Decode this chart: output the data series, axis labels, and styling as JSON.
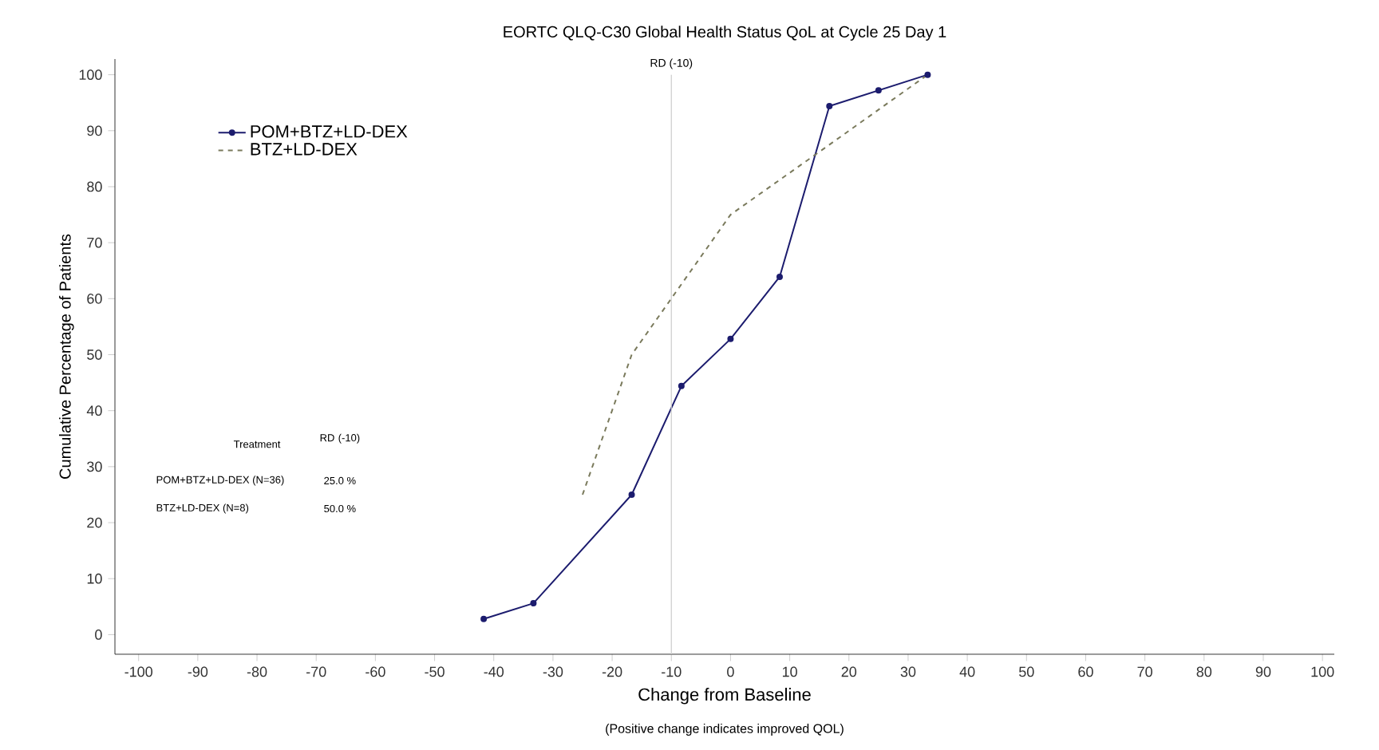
{
  "chart_data": {
    "type": "line",
    "title": "EORTC QLQ-C30 Global Health Status QoL at Cycle 25 Day 1",
    "xlabel": "Change from Baseline",
    "ylabel": "Cumulative Percentage of Patients",
    "xlim": [
      -104,
      102
    ],
    "ylim": [
      -3.5,
      102.8
    ],
    "xticks": [
      -100,
      -90,
      -80,
      -70,
      -60,
      -50,
      -40,
      -30,
      -20,
      -10,
      0,
      10,
      20,
      30,
      40,
      50,
      60,
      70,
      80,
      90,
      100
    ],
    "yticks": [
      0,
      10,
      20,
      30,
      40,
      50,
      60,
      70,
      80,
      90,
      100
    ],
    "grid": false,
    "legend": "top left",
    "series": [
      {
        "name": "POM+BTZ+LD-DEX",
        "color": "#1c1c6e",
        "marker": "circle",
        "line_style": "solid",
        "x": [
          -41.7,
          -33.3,
          -16.7,
          -8.3,
          0,
          8.3,
          16.7,
          25,
          33.3
        ],
        "values": [
          2.8,
          5.6,
          25.0,
          44.4,
          52.8,
          63.9,
          94.4,
          97.2,
          100
        ]
      },
      {
        "name": "BTZ+LD-DEX",
        "color": "#7a7a5c",
        "marker": "none",
        "line_style": "dashed",
        "x": [
          -25,
          -16.7,
          0,
          16.7,
          33.3
        ],
        "values": [
          25,
          50,
          75,
          87.5,
          100
        ]
      }
    ],
    "ref_lines": [
      {
        "axis": "x",
        "value": -10,
        "label": "RD (-10)",
        "color": "#cccccc"
      }
    ],
    "annotations": [
      "Treatment",
      "RD (-10)",
      "POM+BTZ+LD-DEX (N=36)",
      "25.0 %",
      "BTZ+LD-DEX (N=8)",
      "50.0 %",
      "(Positive change indicates improved QOL)"
    ]
  }
}
